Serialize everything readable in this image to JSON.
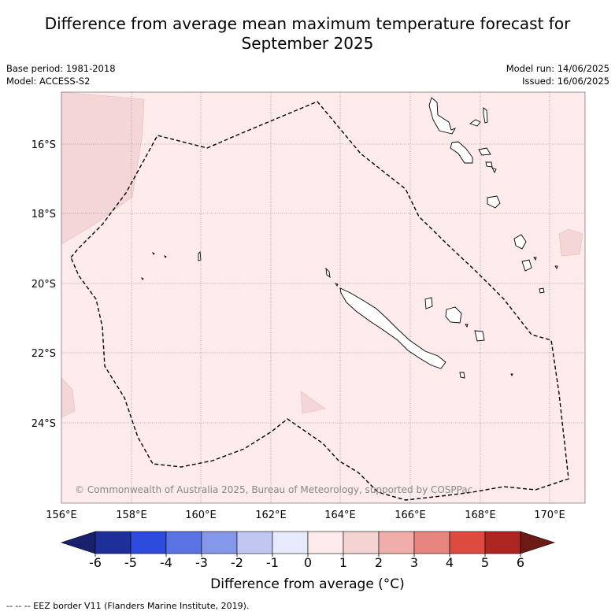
{
  "title_line1": "Difference from average mean maximum temperature forecast for",
  "title_line2": "September 2025",
  "meta": {
    "base_period": "Base period: 1981-2018",
    "model": "Model: ACCESS-S2",
    "model_run": "Model run: 14/06/2025",
    "issued": "Issued: 16/06/2025"
  },
  "map": {
    "lon_ticks": [
      "156°E",
      "158°E",
      "160°E",
      "162°E",
      "164°E",
      "166°E",
      "168°E",
      "170°E"
    ],
    "lat_ticks": [
      "16°S",
      "18°S",
      "20°S",
      "22°S",
      "24°S"
    ],
    "copyright": "© Commonwealth of Australia 2025, Bureau of Meteorology, supported by COSPPac",
    "background_color": "#fcebea",
    "warm_patch_color": "#f4d6d6",
    "eez_style": "dashed black"
  },
  "colorbar": {
    "ticks": [
      "-6",
      "-5",
      "-4",
      "-3",
      "-2",
      "-1",
      "0",
      "1",
      "2",
      "3",
      "4",
      "5",
      "6"
    ],
    "colors": [
      "#1f2f9a",
      "#2d4bdc",
      "#5a72e4",
      "#8597e8",
      "#c1c7f2",
      "#e7eafa",
      "#fcebea",
      "#f4d4d3",
      "#efaea9",
      "#e8857e",
      "#dd4a40",
      "#ad2621"
    ],
    "under_color": "#17216e",
    "over_color": "#6c1a16",
    "label": "Difference from average (°C)"
  },
  "footnote": "-- -- -- EEZ border V11 (Flanders Marine Institute, 2019)."
}
